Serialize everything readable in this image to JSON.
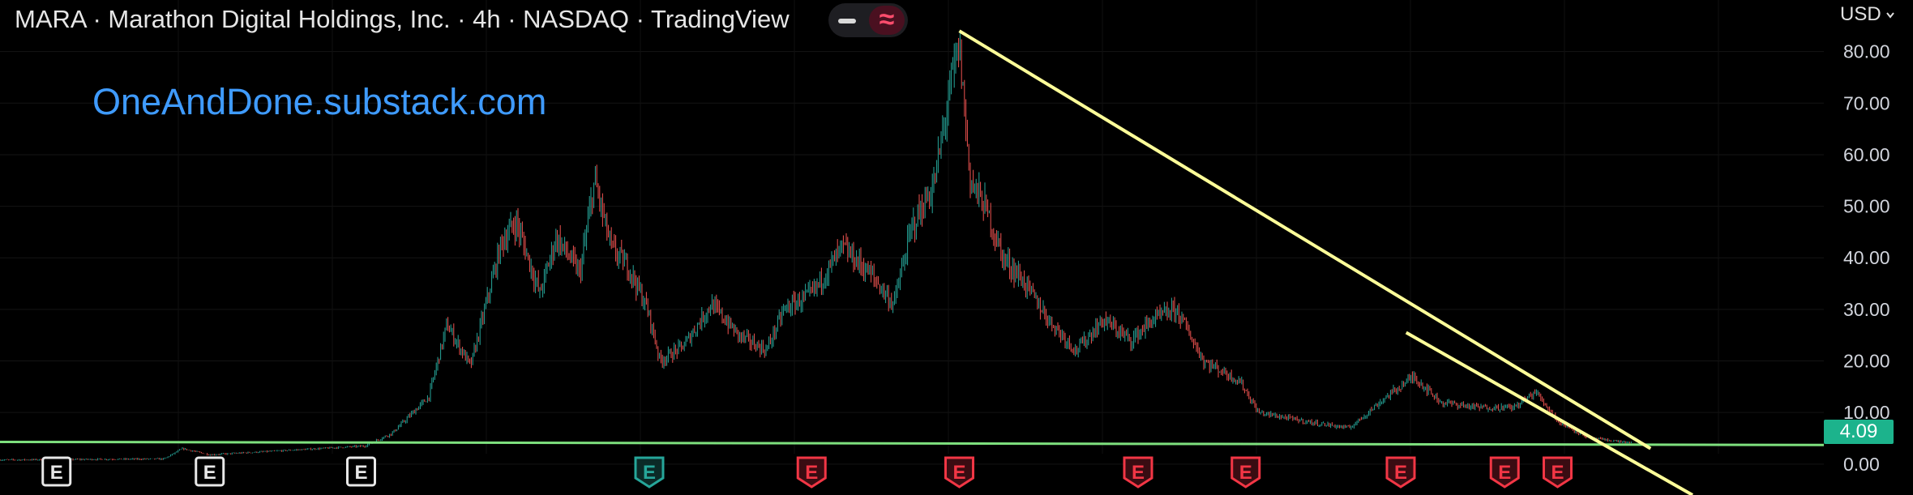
{
  "header": {
    "title": "MARA · Marathon Digital Holdings, Inc. · 4h · NASDAQ · TradingView",
    "toggle_left_icon": "line-icon",
    "toggle_right_icon": "wave-icon",
    "toggle_right_glyph": "≈"
  },
  "watermark": "OneAndDone.substack.com",
  "axis": {
    "currency": "USD",
    "currency_menu_icon": "chevron-down-icon"
  },
  "last_price": "4.09",
  "colors": {
    "background": "#000000",
    "up": "#26a69a",
    "down": "#ef5350",
    "trendline": "#ffff99",
    "support": "#7ee07e",
    "price_tag": "#1cb38c",
    "earnings_past": "#e8e8e8",
    "earnings_teal": "#26a69a",
    "earnings_red": "#f23645"
  },
  "chart_data": {
    "type": "line",
    "style": "candlestick",
    "ylim": [
      -6,
      90
    ],
    "yticks": [
      "80.00",
      "70.00",
      "60.00",
      "50.00",
      "40.00",
      "30.00",
      "20.00",
      "10.00",
      "0.00"
    ],
    "ytick_values": [
      80,
      70,
      60,
      50,
      40,
      30,
      20,
      10,
      0
    ],
    "xlim": [
      0,
      1000
    ],
    "grid": true,
    "price_path": [
      [
        0,
        0.8
      ],
      [
        90,
        1.0
      ],
      [
        100,
        3.0
      ],
      [
        115,
        1.8
      ],
      [
        150,
        2.5
      ],
      [
        200,
        3.5
      ],
      [
        215,
        6
      ],
      [
        235,
        13
      ],
      [
        245,
        27
      ],
      [
        258,
        19
      ],
      [
        275,
        43
      ],
      [
        283,
        47
      ],
      [
        296,
        33
      ],
      [
        305,
        44
      ],
      [
        318,
        37
      ],
      [
        326,
        55
      ],
      [
        335,
        42
      ],
      [
        345,
        38
      ],
      [
        355,
        30
      ],
      [
        362,
        20
      ],
      [
        375,
        23
      ],
      [
        390,
        31
      ],
      [
        405,
        25
      ],
      [
        420,
        22
      ],
      [
        430,
        30
      ],
      [
        445,
        33
      ],
      [
        462,
        42
      ],
      [
        477,
        37
      ],
      [
        490,
        31
      ],
      [
        500,
        46
      ],
      [
        512,
        54
      ],
      [
        522,
        75
      ],
      [
        526,
        81
      ],
      [
        532,
        55
      ],
      [
        540,
        50
      ],
      [
        550,
        40
      ],
      [
        560,
        36
      ],
      [
        575,
        28
      ],
      [
        590,
        22
      ],
      [
        605,
        28
      ],
      [
        620,
        24
      ],
      [
        632,
        28
      ],
      [
        645,
        30
      ],
      [
        660,
        20
      ],
      [
        680,
        16
      ],
      [
        690,
        10
      ],
      [
        720,
        8
      ],
      [
        740,
        7
      ],
      [
        760,
        13
      ],
      [
        775,
        17
      ],
      [
        790,
        12
      ],
      [
        810,
        11
      ],
      [
        830,
        11
      ],
      [
        842,
        14
      ],
      [
        855,
        8
      ],
      [
        872,
        5
      ],
      [
        895,
        4.09
      ]
    ],
    "earnings": [
      {
        "x": 31,
        "label": "E",
        "style": "past"
      },
      {
        "x": 115,
        "label": "E",
        "style": "past"
      },
      {
        "x": 198,
        "label": "E",
        "style": "past"
      },
      {
        "x": 356,
        "label": "E",
        "style": "teal"
      },
      {
        "x": 445,
        "label": "E",
        "style": "red"
      },
      {
        "x": 526,
        "label": "E",
        "style": "red"
      },
      {
        "x": 624,
        "label": "E",
        "style": "red"
      },
      {
        "x": 683,
        "label": "E",
        "style": "red"
      },
      {
        "x": 768,
        "label": "E",
        "style": "red"
      },
      {
        "x": 825,
        "label": "E",
        "style": "red"
      },
      {
        "x": 854,
        "label": "E",
        "style": "red"
      }
    ],
    "lines": [
      {
        "name": "support",
        "points": [
          [
            0,
            4.3
          ],
          [
            1000,
            3.7
          ]
        ]
      },
      {
        "name": "trendline-1",
        "points": [
          [
            526,
            84
          ],
          [
            905,
            3
          ]
        ]
      },
      {
        "name": "trendline-2",
        "points": [
          [
            771,
            25.5
          ],
          [
            928,
            -6
          ]
        ]
      }
    ]
  }
}
